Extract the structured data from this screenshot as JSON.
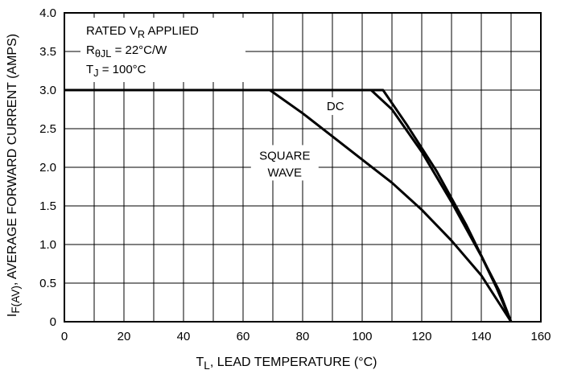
{
  "chart_data": {
    "type": "line",
    "xlabel": {
      "main": "T",
      "sub": "L",
      "rest": ", LEAD TEMPERATURE (°C)"
    },
    "ylabel": {
      "main": "I",
      "sub": "F(AV)",
      "rest": ", AVERAGE FORWARD CURRENT (AMPS)"
    },
    "xlim": [
      0,
      160
    ],
    "ylim": [
      0,
      4.0
    ],
    "x_ticks": [
      0,
      20,
      40,
      60,
      80,
      100,
      120,
      140,
      160
    ],
    "x_tick_labels": [
      "0",
      "20",
      "40",
      "60",
      "80",
      "100",
      "120",
      "140",
      "160"
    ],
    "y_ticks": [
      0,
      0.5,
      1.0,
      1.5,
      2.0,
      2.5,
      3.0,
      3.5,
      4.0
    ],
    "y_tick_labels": [
      "0",
      "0.5",
      "1.0",
      "1.5",
      "2.0",
      "2.5",
      "3.0",
      "3.5",
      "4.0"
    ],
    "minor_grid_step_x": 10,
    "grid": true,
    "conditions": [
      {
        "main": "RATED V",
        "sub": "R",
        "rest": " APPLIED"
      },
      {
        "main": "R",
        "sub": "θJL",
        "rest": " = 22°C/W"
      },
      {
        "main": "T",
        "sub": "J",
        "rest": " = 100°C"
      }
    ],
    "series": [
      {
        "name": "SQUARE WAVE",
        "x": [
          0,
          69,
          80,
          90,
          100,
          110,
          120,
          130,
          140,
          150
        ],
        "y": [
          3.0,
          3.0,
          2.7,
          2.4,
          2.1,
          1.8,
          1.45,
          1.05,
          0.6,
          0
        ]
      },
      {
        "name": "",
        "x": [
          0,
          103,
          110,
          120,
          130,
          140,
          145,
          150
        ],
        "y": [
          3.0,
          3.0,
          2.75,
          2.2,
          1.55,
          0.85,
          0.45,
          0
        ]
      },
      {
        "name": "DC",
        "x": [
          0,
          107,
          115,
          125,
          135,
          142,
          146,
          150
        ],
        "y": [
          3.0,
          3.0,
          2.55,
          1.95,
          1.25,
          0.7,
          0.4,
          0
        ]
      }
    ],
    "labels": {
      "dc": "DC",
      "square_wave": [
        "SQUARE",
        "WAVE"
      ]
    },
    "colors": {
      "line": "#000000",
      "grid": "#000000",
      "background": "#ffffff"
    }
  }
}
